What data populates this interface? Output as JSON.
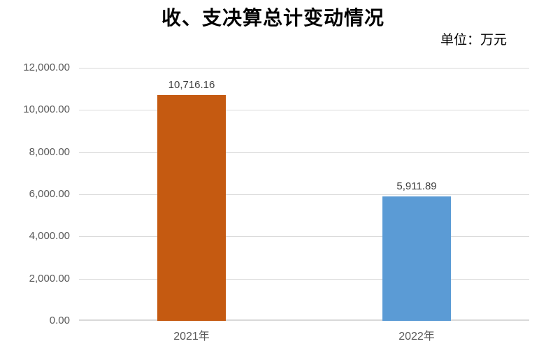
{
  "chart": {
    "title": "收、支决算总计变动情况",
    "unit_label": "单位：万元"
  },
  "chart_data": {
    "type": "bar",
    "title": "收、支决算总计变动情况",
    "unit": "万元",
    "categories": [
      "2021年",
      "2022年"
    ],
    "values": [
      10716.16,
      5911.89
    ],
    "data_labels": [
      "10,716.16",
      "5,911.89"
    ],
    "bar_colors": [
      "#C55A11",
      "#5B9BD5"
    ],
    "xlabel": "",
    "ylabel": "",
    "ylim": [
      0,
      12000
    ],
    "ytick_interval": 2000,
    "yticks": [
      0,
      2000,
      4000,
      6000,
      8000,
      10000,
      12000
    ],
    "ytick_labels": [
      "0.00",
      "2,000.00",
      "4,000.00",
      "6,000.00",
      "8,000.00",
      "10,000.00",
      "12,000.00"
    ],
    "grid": true,
    "legend": "none",
    "colors": {
      "gridline": "#D9D9D9",
      "axis_line": "#D9D9D9",
      "tick_label": "#595959",
      "data_label": "#404040",
      "title": "#000000"
    }
  }
}
